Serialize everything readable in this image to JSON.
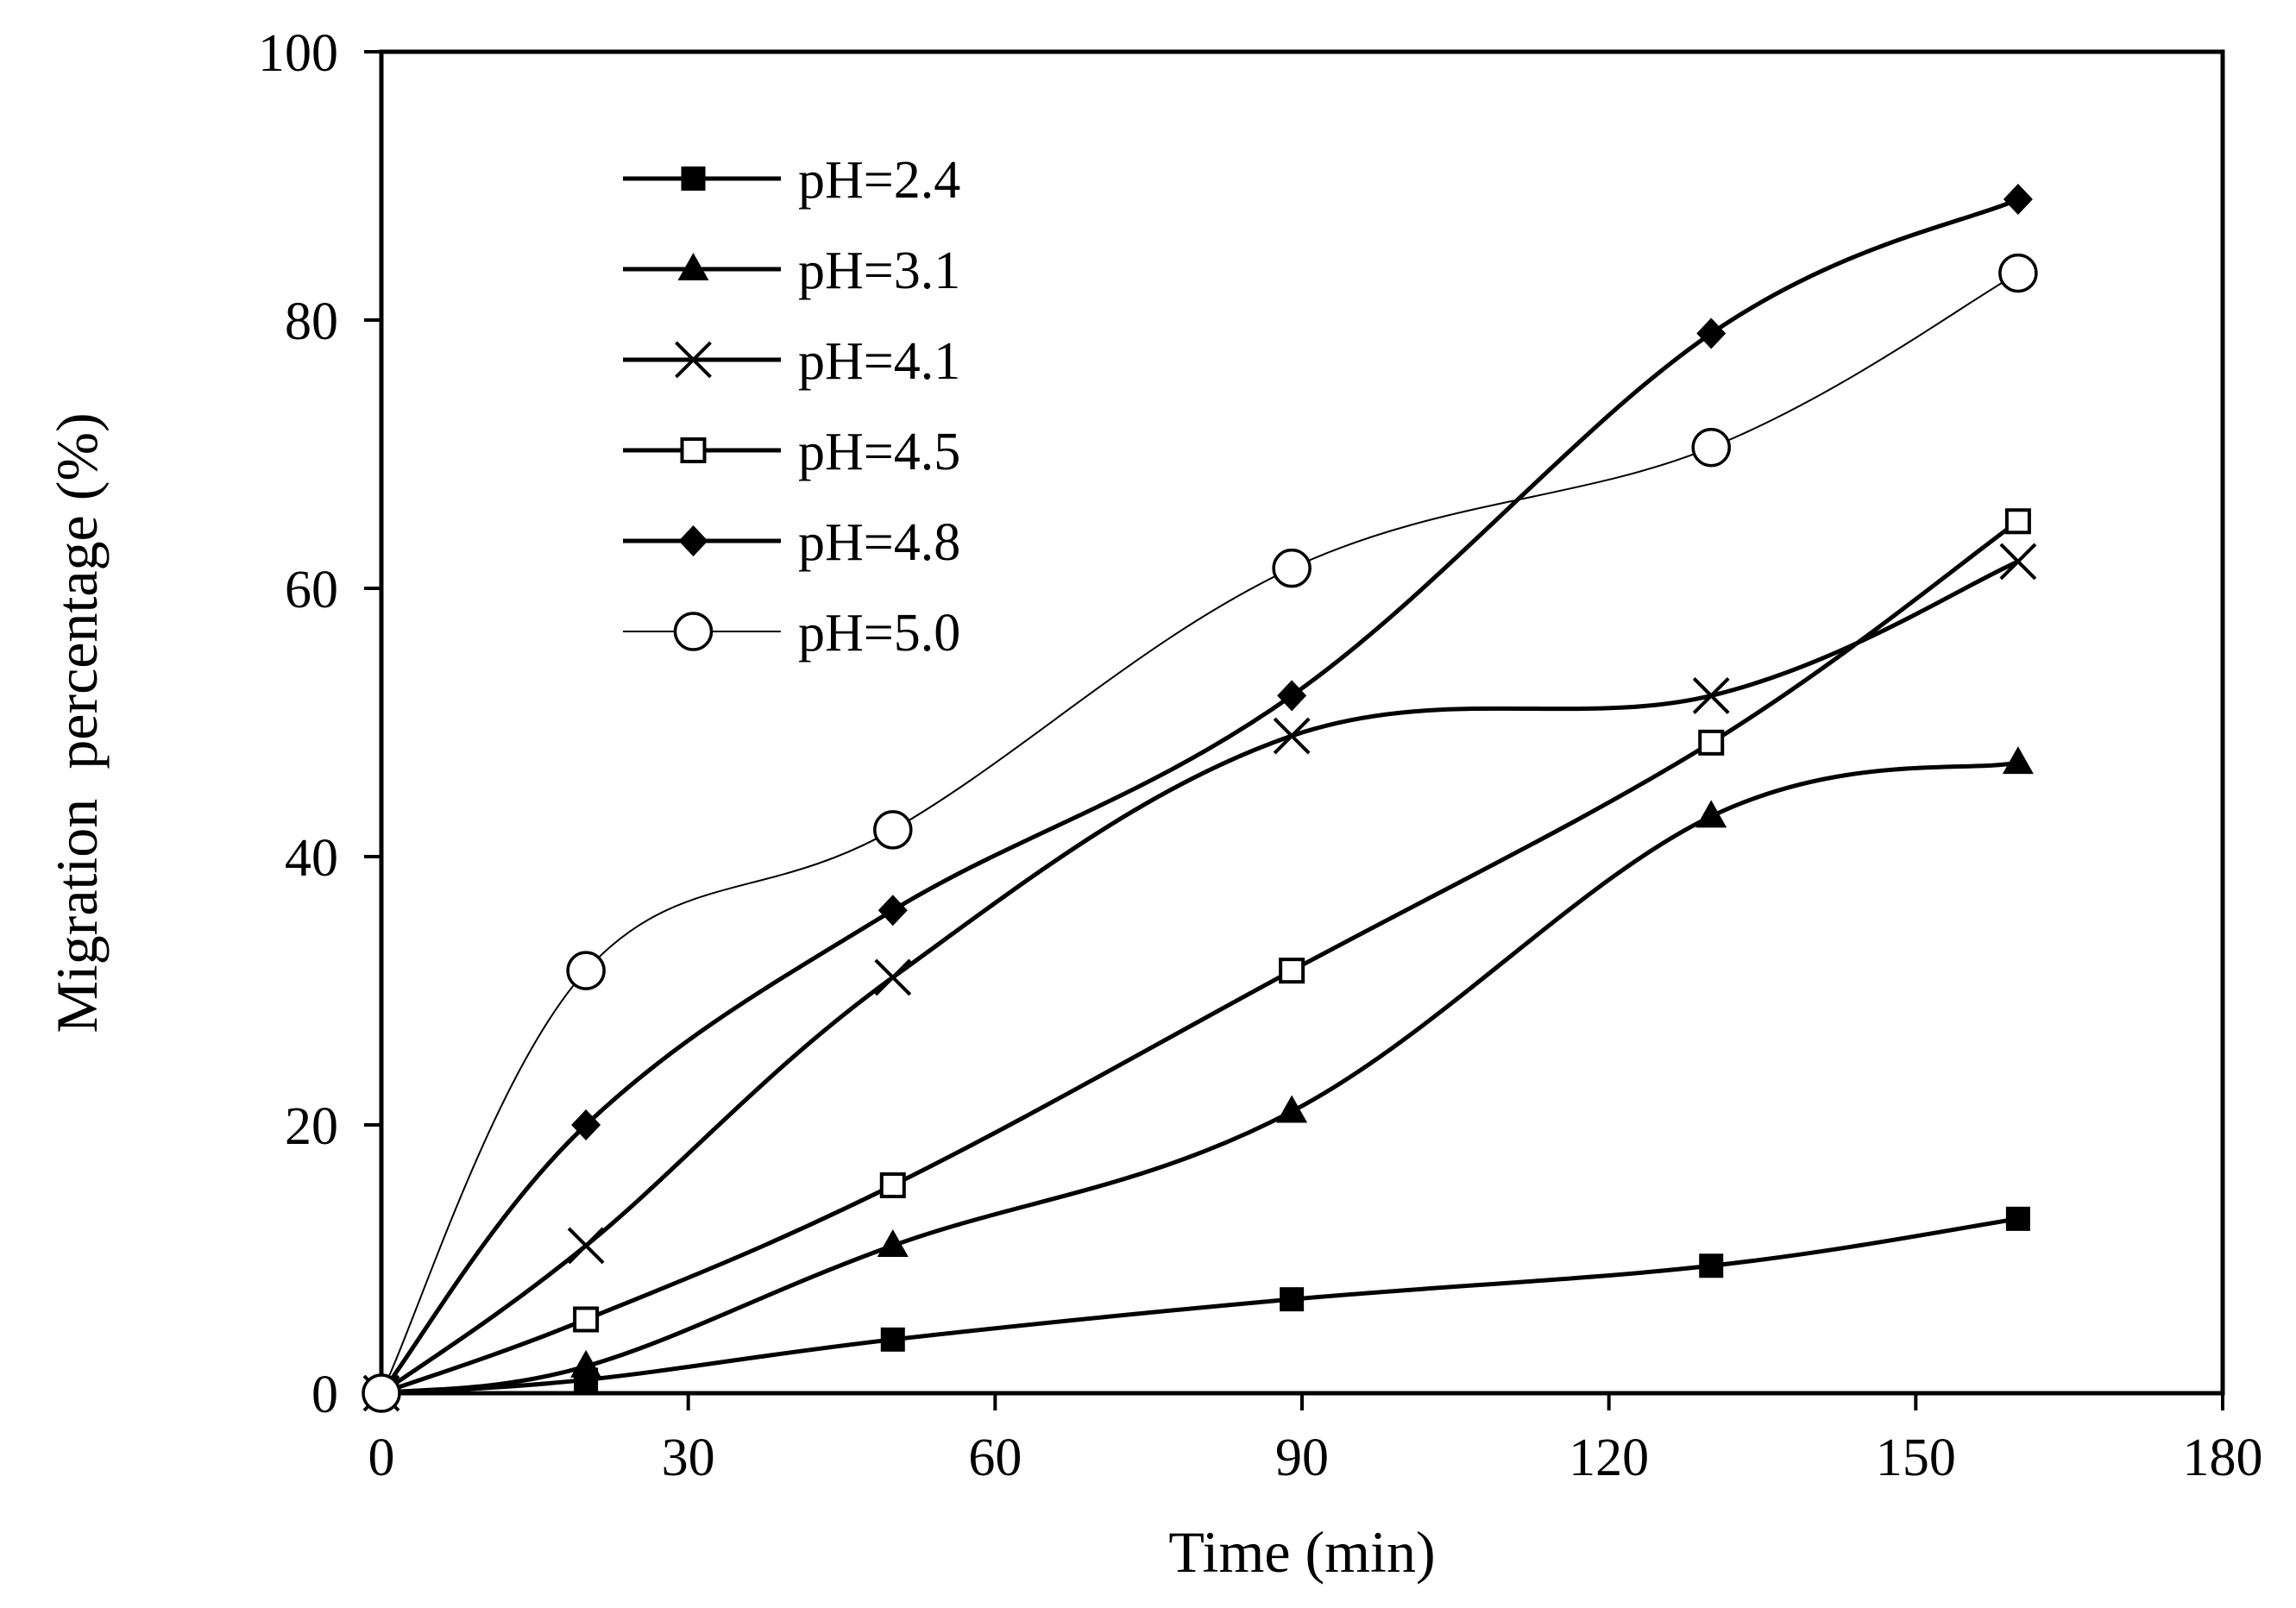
{
  "chart_data": {
    "type": "line",
    "title": "",
    "xlabel": "Time (min)",
    "ylabel": "Migration  percentage (%)",
    "xlim": [
      0,
      180
    ],
    "ylim": [
      0,
      100
    ],
    "xticks": [
      0,
      30,
      60,
      90,
      120,
      150,
      180
    ],
    "yticks": [
      0,
      20,
      40,
      60,
      80,
      100
    ],
    "grid": false,
    "legend_position": "top-left",
    "x": [
      0,
      20,
      50,
      89,
      130,
      160
    ],
    "series": [
      {
        "name": "pH=2.4",
        "marker": "filled-square",
        "values": [
          0,
          1,
          4,
          7,
          9.5,
          13
        ]
      },
      {
        "name": "pH=3.1",
        "marker": "filled-triangle",
        "values": [
          0,
          2,
          11,
          21,
          43,
          47
        ]
      },
      {
        "name": "pH=4.1",
        "marker": "cross",
        "values": [
          0,
          11,
          31,
          49,
          52,
          62
        ]
      },
      {
        "name": "pH=4.5",
        "marker": "open-square",
        "values": [
          0,
          5.5,
          15.5,
          31.5,
          48.5,
          65
        ]
      },
      {
        "name": "pH=4.8",
        "marker": "filled-diamond",
        "values": [
          0,
          20,
          36,
          52,
          79,
          89
        ]
      },
      {
        "name": "pH=5.0",
        "marker": "open-circle",
        "thin": true,
        "values": [
          0,
          31.5,
          42,
          61.5,
          70.5,
          83.5
        ]
      }
    ]
  }
}
